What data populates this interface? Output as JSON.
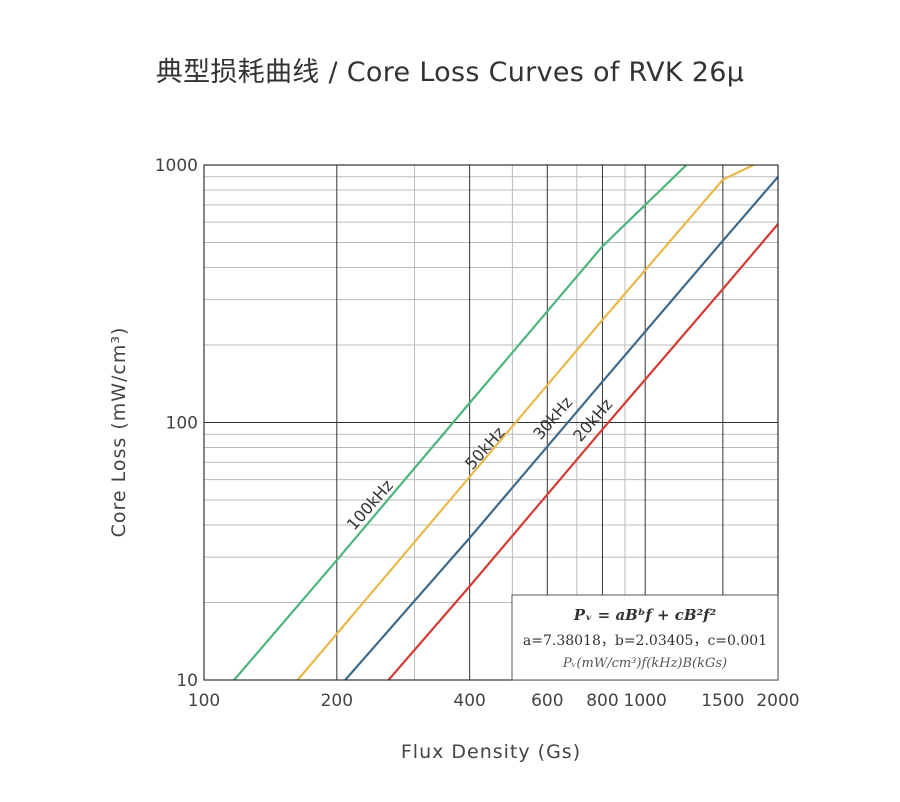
{
  "chart_data": {
    "type": "line",
    "title": "典型损耗曲线 / Core Loss Curves of RVK 26μ",
    "xlabel": "Flux Density (Gs)",
    "ylabel": "Core Loss (mW/cm³)",
    "x_scale": "log",
    "y_scale": "log",
    "xlim": [
      100,
      2000
    ],
    "ylim": [
      10,
      1000
    ],
    "x_ticks": [
      100,
      200,
      400,
      600,
      800,
      1000,
      1500,
      2000
    ],
    "x_tick_labels": [
      "100",
      "200",
      "400",
      "600",
      "800",
      "1000",
      "1500",
      "2000"
    ],
    "y_ticks": [
      10,
      100,
      1000
    ],
    "y_tick_labels": [
      "10",
      "100",
      "1000"
    ],
    "grid": true,
    "series": [
      {
        "name": "100kHz",
        "color": "#4db57c",
        "x": [
          117,
          200,
          400,
          800,
          1240
        ],
        "y": [
          10,
          29.2,
          119,
          483,
          1000
        ]
      },
      {
        "name": "50kHz",
        "color": "#e8b94a",
        "x": [
          163,
          200,
          400,
          800,
          1500,
          1760
        ],
        "y": [
          10,
          15.1,
          61.5,
          250,
          878,
          1000
        ]
      },
      {
        "name": "30kHz",
        "color": "#3d6a8c",
        "x": [
          209,
          400,
          800,
          1500,
          2000
        ],
        "y": [
          10,
          35.6,
          144,
          508,
          900
        ]
      },
      {
        "name": "20kHz",
        "color": "#d33b35",
        "x": [
          262,
          400,
          800,
          1500,
          2000
        ],
        "y": [
          10,
          23.1,
          94,
          330,
          590
        ]
      }
    ]
  },
  "formula": {
    "main": "Pᵥ = aBᵇf + cB²f²",
    "coefficients": "a=7.38018，b=2.03405，c=0.001",
    "units": "Pᵥ(mW/cm³)f(kHz)B(kGs)"
  },
  "colors": {
    "grid_major": "#333333",
    "grid_minor": "#bbbbbb",
    "frame": "#333333"
  }
}
